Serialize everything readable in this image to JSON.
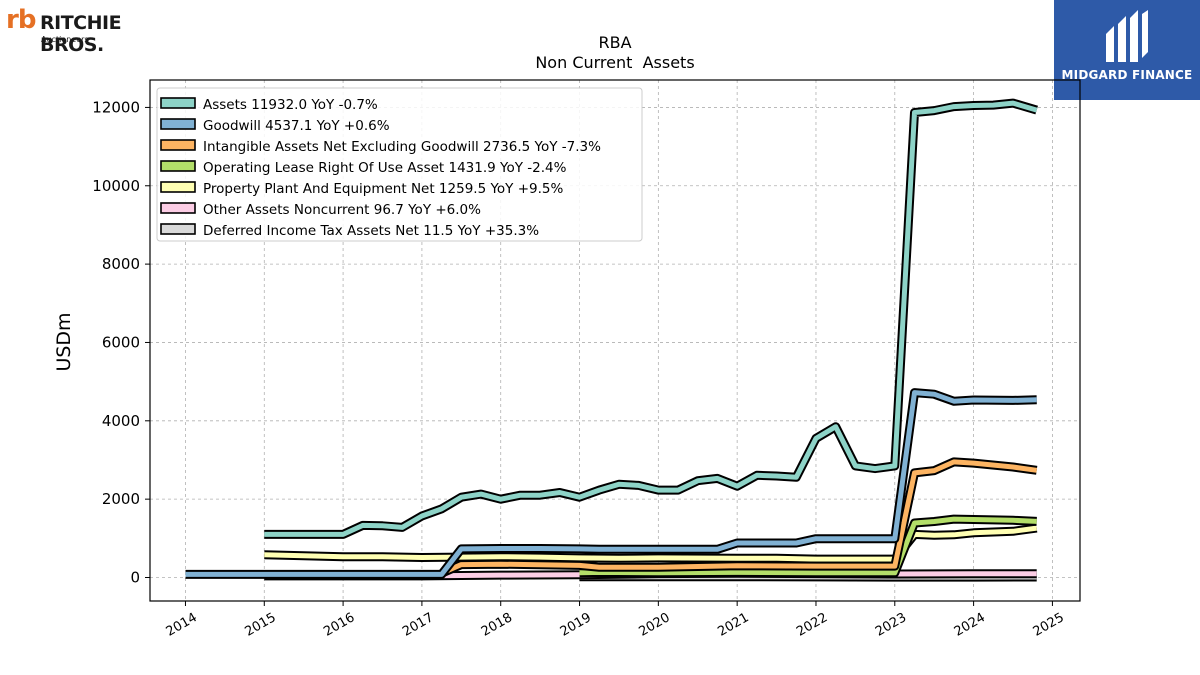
{
  "brand_left": {
    "name": "RITCHIE BROS.",
    "sub": "Auctioneers"
  },
  "brand_right": {
    "name": "MIDGARD FINANCE"
  },
  "chart_data": {
    "type": "line",
    "title": "RBA",
    "subtitle": "Non Current  Assets",
    "ylabel": "USDm",
    "xlabel": "",
    "xlim": [
      2013.55,
      2025.35
    ],
    "ylim": [
      -600,
      12700
    ],
    "xticks": [
      "2014",
      "2015",
      "2016",
      "2017",
      "2018",
      "2019",
      "2020",
      "2021",
      "2022",
      "2023",
      "2024",
      "2025"
    ],
    "yticks": [
      "0",
      "2000",
      "4000",
      "6000",
      "8000",
      "10000",
      "12000"
    ],
    "grid": true,
    "legend_position": "top-left",
    "series": [
      {
        "name": "Assets",
        "legend": "Assets  11932.0 YoY -0.7%",
        "color": "#8dd3c7",
        "points": [
          [
            2015.0,
            1100
          ],
          [
            2016.0,
            1100
          ],
          [
            2016.25,
            1330
          ],
          [
            2016.5,
            1320
          ],
          [
            2016.75,
            1280
          ],
          [
            2017.0,
            1570
          ],
          [
            2017.25,
            1750
          ],
          [
            2017.5,
            2050
          ],
          [
            2017.75,
            2130
          ],
          [
            2018.0,
            2000
          ],
          [
            2018.25,
            2100
          ],
          [
            2018.5,
            2100
          ],
          [
            2018.75,
            2170
          ],
          [
            2019.0,
            2050
          ],
          [
            2019.25,
            2230
          ],
          [
            2019.5,
            2380
          ],
          [
            2019.75,
            2350
          ],
          [
            2020.0,
            2230
          ],
          [
            2020.25,
            2230
          ],
          [
            2020.5,
            2470
          ],
          [
            2020.75,
            2530
          ],
          [
            2021.0,
            2330
          ],
          [
            2021.25,
            2610
          ],
          [
            2021.5,
            2590
          ],
          [
            2021.75,
            2560
          ],
          [
            2022.0,
            3550
          ],
          [
            2022.25,
            3850
          ],
          [
            2022.5,
            2850
          ],
          [
            2022.75,
            2780
          ],
          [
            2023.0,
            2850
          ],
          [
            2023.25,
            11870
          ],
          [
            2023.5,
            11920
          ],
          [
            2023.75,
            12020
          ],
          [
            2024.0,
            12050
          ],
          [
            2024.25,
            12060
          ],
          [
            2024.5,
            12110
          ],
          [
            2024.8,
            11932
          ]
        ]
      },
      {
        "name": "Goodwill",
        "legend": "Goodwill  4537.1 YoY +0.6%",
        "color": "#80b1d3",
        "points": [
          [
            2014.0,
            80
          ],
          [
            2017.25,
            80
          ],
          [
            2017.5,
            730
          ],
          [
            2018.0,
            740
          ],
          [
            2018.5,
            740
          ],
          [
            2019.0,
            730
          ],
          [
            2019.25,
            720
          ],
          [
            2020.0,
            720
          ],
          [
            2020.75,
            720
          ],
          [
            2021.0,
            880
          ],
          [
            2021.75,
            880
          ],
          [
            2022.0,
            990
          ],
          [
            2023.0,
            990
          ],
          [
            2023.25,
            4720
          ],
          [
            2023.5,
            4680
          ],
          [
            2023.75,
            4500
          ],
          [
            2024.0,
            4530
          ],
          [
            2024.5,
            4520
          ],
          [
            2024.8,
            4537
          ]
        ]
      },
      {
        "name": "Intangible Assets Net Excluding Goodwill",
        "legend": "Intangible Assets Net Excluding Goodwill  2736.5 YoY -7.3%",
        "color": "#fdb462",
        "points": [
          [
            2017.25,
            110
          ],
          [
            2017.5,
            330
          ],
          [
            2018.0,
            340
          ],
          [
            2019.0,
            310
          ],
          [
            2019.25,
            260
          ],
          [
            2020.0,
            260
          ],
          [
            2021.0,
            300
          ],
          [
            2022.0,
            290
          ],
          [
            2023.0,
            290
          ],
          [
            2023.25,
            2670
          ],
          [
            2023.5,
            2730
          ],
          [
            2023.75,
            2950
          ],
          [
            2024.0,
            2920
          ],
          [
            2024.5,
            2820
          ],
          [
            2024.8,
            2737
          ]
        ]
      },
      {
        "name": "Operating Lease Right Of Use Asset",
        "legend": "Operating Lease Right Of Use Asset  1431.9 YoY -2.4%",
        "color": "#b3de69",
        "points": [
          [
            2019.0,
            120
          ],
          [
            2019.25,
            130
          ],
          [
            2020.0,
            120
          ],
          [
            2021.0,
            130
          ],
          [
            2022.0,
            120
          ],
          [
            2023.0,
            120
          ],
          [
            2023.25,
            1390
          ],
          [
            2023.5,
            1430
          ],
          [
            2023.75,
            1490
          ],
          [
            2024.0,
            1480
          ],
          [
            2024.5,
            1460
          ],
          [
            2024.8,
            1432
          ]
        ]
      },
      {
        "name": "Property Plant And Equipment Net",
        "legend": "Property Plant And Equipment Net  1259.5 YoY +9.5%",
        "color": "#ffffb3",
        "points": [
          [
            2015.0,
            580
          ],
          [
            2016.0,
            530
          ],
          [
            2016.5,
            530
          ],
          [
            2017.0,
            510
          ],
          [
            2018.0,
            530
          ],
          [
            2018.5,
            520
          ],
          [
            2019.0,
            500
          ],
          [
            2019.5,
            490
          ],
          [
            2020.0,
            500
          ],
          [
            2021.0,
            490
          ],
          [
            2021.5,
            490
          ],
          [
            2022.0,
            470
          ],
          [
            2023.0,
            470
          ],
          [
            2023.25,
            1100
          ],
          [
            2023.5,
            1080
          ],
          [
            2023.75,
            1090
          ],
          [
            2024.0,
            1140
          ],
          [
            2024.5,
            1180
          ],
          [
            2024.8,
            1260
          ]
        ]
      },
      {
        "name": "Other Assets Noncurrent",
        "legend": "Other Assets Noncurrent  96.7 YoY +6.0%",
        "color": "#fccde5",
        "points": [
          [
            2015.0,
            40
          ],
          [
            2017.0,
            40
          ],
          [
            2018.0,
            60
          ],
          [
            2019.0,
            70
          ],
          [
            2020.0,
            100
          ],
          [
            2021.0,
            110
          ],
          [
            2022.0,
            100
          ],
          [
            2023.0,
            90
          ],
          [
            2024.0,
            95
          ],
          [
            2024.8,
            97
          ]
        ]
      },
      {
        "name": "Deferred Income Tax Assets Net",
        "legend": "Deferred Income Tax Assets Net  11.5 YoY +35.3%",
        "color": "#d9d9d9",
        "points": [
          [
            2019.0,
            20
          ],
          [
            2020.0,
            20
          ],
          [
            2021.0,
            20
          ],
          [
            2022.0,
            15
          ],
          [
            2023.0,
            10
          ],
          [
            2024.0,
            10
          ],
          [
            2024.8,
            12
          ]
        ]
      }
    ]
  }
}
